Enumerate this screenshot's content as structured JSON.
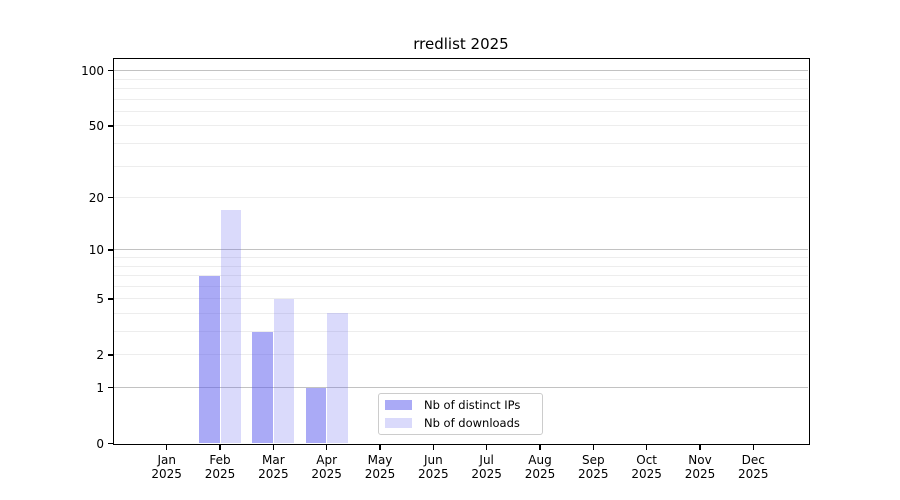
{
  "title": "rredlist 2025",
  "chart_data": {
    "type": "bar",
    "title": "rredlist 2025",
    "categories": [
      "Jan",
      "Feb",
      "Mar",
      "Apr",
      "May",
      "Jun",
      "Jul",
      "Aug",
      "Sep",
      "Oct",
      "Nov",
      "Dec"
    ],
    "year": "2025",
    "series": [
      {
        "name": "Nb of distinct IPs",
        "color": "rgba(85,85,238,0.5)",
        "values": [
          0,
          7,
          3,
          1,
          0,
          0,
          0,
          0,
          0,
          0,
          0,
          0
        ]
      },
      {
        "name": "Nb of downloads",
        "color": "rgba(85,85,238,0.22)",
        "values": [
          0,
          17,
          5,
          4,
          0,
          0,
          0,
          0,
          0,
          0,
          0,
          0
        ]
      }
    ],
    "xlabel": "",
    "ylabel": "",
    "yscale": "log1p",
    "ylim": [
      0,
      115
    ],
    "yticks": [
      0,
      1,
      2,
      5,
      10,
      20,
      50,
      100
    ],
    "major_gridlines": [
      1,
      10,
      100
    ],
    "minor_gridlines": [
      2,
      3,
      4,
      5,
      6,
      7,
      8,
      9,
      20,
      30,
      40,
      50,
      60,
      70,
      80,
      90
    ],
    "grid": true,
    "legend_position": "lower center"
  },
  "colors": {
    "bar_distinct_ips": "rgba(85,85,238,0.5)",
    "bar_downloads": "rgba(85,85,238,0.22)",
    "grid_major": "#c2c2c2",
    "grid_minor": "#ededed",
    "axis": "#000000",
    "legend_border": "#cccccc",
    "background": "#ffffff"
  }
}
